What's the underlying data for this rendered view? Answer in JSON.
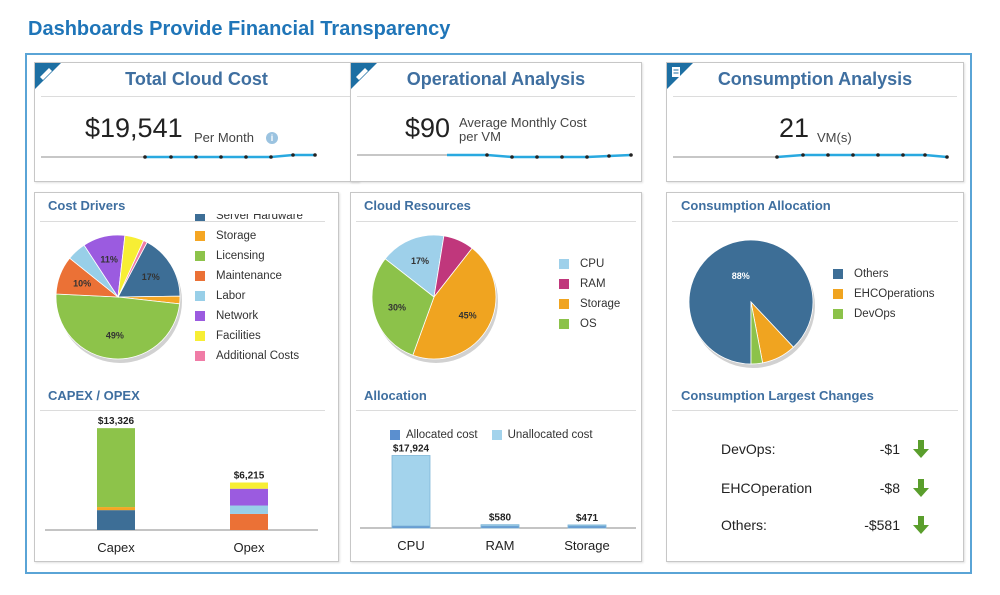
{
  "page": {
    "title": "Dashboards Provide Financial Transparency"
  },
  "colors": {
    "accent": "#1f75b8",
    "sparkline": "#29a9e0",
    "arrow_down": "#5a9e2c"
  },
  "kpis": [
    {
      "title": "Total Cloud Cost",
      "value": "$19,541",
      "unit": "Per Month",
      "icon": "pencil-icon",
      "has_info": true
    },
    {
      "title": "Operational Analysis",
      "value": "$90",
      "unit_line1": "Average Monthly Cost",
      "unit_line2": "per VM",
      "icon": "pencil-icon"
    },
    {
      "title": "Consumption Analysis",
      "value": "21",
      "unit": "VM(s)",
      "icon": "document-icon"
    }
  ],
  "sections": {
    "cost_drivers": "Cost Drivers",
    "cloud_resources": "Cloud Resources",
    "consumption_allocation": "Consumption Allocation",
    "capex_opex": "CAPEX / OPEX",
    "allocation": "Allocation",
    "largest_changes": "Consumption Largest Changes"
  },
  "chart_data": [
    {
      "type": "pie",
      "id": "cost-drivers",
      "slices": [
        {
          "label": "Server Hardware",
          "value": 17,
          "color": "#3d6e96",
          "display": "17%"
        },
        {
          "label": "Storage",
          "value": 2,
          "color": "#f5a623",
          "display": ""
        },
        {
          "label": "Licensing",
          "value": 49,
          "color": "#8dc34a",
          "display": "49%"
        },
        {
          "label": "Maintenance",
          "value": 10,
          "color": "#eb7136",
          "display": "10%"
        },
        {
          "label": "Labor",
          "value": 5,
          "color": "#98cfe8",
          "display": ""
        },
        {
          "label": "Network",
          "value": 11,
          "color": "#9b5be0",
          "display": "11%"
        },
        {
          "label": "Facilities",
          "value": 5,
          "color": "#f7ee34",
          "display": ""
        },
        {
          "label": "Additional Costs",
          "value": 1,
          "color": "#f07ca6",
          "display": ""
        }
      ]
    },
    {
      "type": "pie",
      "id": "cloud-resources",
      "slices": [
        {
          "label": "CPU",
          "value": 17,
          "color": "#9ed0ea",
          "display": "17%"
        },
        {
          "label": "RAM",
          "value": 8,
          "color": "#c0377c",
          "display": ""
        },
        {
          "label": "Storage",
          "value": 45,
          "color": "#f0a420",
          "display": "45%"
        },
        {
          "label": "OS",
          "value": 30,
          "color": "#8cc24a",
          "display": "30%"
        }
      ]
    },
    {
      "type": "pie",
      "id": "consumption-allocation",
      "slices": [
        {
          "label": "Others",
          "value": 88,
          "color": "#3d6e96",
          "display": "88%"
        },
        {
          "label": "EHCOperations",
          "value": 9,
          "color": "#f0a420",
          "display": ""
        },
        {
          "label": "DevOps",
          "value": 3,
          "color": "#8cc24a",
          "display": ""
        }
      ]
    },
    {
      "type": "bar",
      "id": "capex-opex",
      "stacked": true,
      "categories": [
        "Capex",
        "Opex"
      ],
      "totals": [
        "$13,326",
        "$6,215"
      ],
      "ylim": [
        0,
        14000
      ],
      "series": [
        {
          "component": "Server Hardware",
          "color": "#3d6e96",
          "values": [
            2600,
            0
          ]
        },
        {
          "component": "Storage",
          "color": "#f5a623",
          "values": [
            400,
            0
          ]
        },
        {
          "component": "Licensing",
          "color": "#8dc34a",
          "values": [
            10326,
            0
          ]
        },
        {
          "component": "Maintenance",
          "color": "#eb7136",
          "values": [
            0,
            2100
          ]
        },
        {
          "component": "Labor",
          "color": "#98cfe8",
          "values": [
            0,
            1100
          ]
        },
        {
          "component": "Network",
          "color": "#9b5be0",
          "values": [
            0,
            2200
          ]
        },
        {
          "component": "Facilities",
          "color": "#f7ee34",
          "values": [
            0,
            815
          ]
        }
      ]
    },
    {
      "type": "bar",
      "id": "allocation",
      "stacked": true,
      "categories": [
        "CPU",
        "RAM",
        "Storage"
      ],
      "totals": [
        "$17,924",
        "$580",
        "$471"
      ],
      "ylim": [
        0,
        19000
      ],
      "series": [
        {
          "name": "Allocated cost",
          "color": "#5b8fcf",
          "values": [
            300,
            250,
            200
          ]
        },
        {
          "name": "Unallocated cost",
          "color": "#a3d3ec",
          "values": [
            17624,
            330,
            271
          ]
        }
      ]
    }
  ],
  "largest_changes": [
    {
      "label": "DevOps:",
      "value": "-$1"
    },
    {
      "label": "EHCOperation",
      "value": "-$8"
    },
    {
      "label": "Others:",
      "value": "-$581"
    }
  ]
}
